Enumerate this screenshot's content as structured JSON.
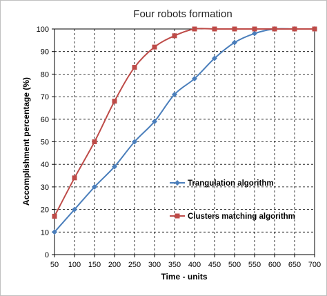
{
  "chart_data": {
    "type": "line",
    "title": "Four robots formation",
    "xlabel": "Time - units",
    "ylabel": "Accomplishment percentage (%)",
    "x": [
      50,
      100,
      150,
      200,
      250,
      300,
      350,
      400,
      450,
      500,
      550,
      600,
      650,
      700
    ],
    "xlim": [
      50,
      700
    ],
    "ylim": [
      0,
      100
    ],
    "xticks": [
      "50",
      "100",
      "150",
      "200",
      "250",
      "300",
      "350",
      "400",
      "450",
      "500",
      "550",
      "600",
      "650",
      "700"
    ],
    "yticks": [
      "0",
      "10",
      "20",
      "30",
      "40",
      "50",
      "60",
      "70",
      "80",
      "90",
      "100"
    ],
    "grid": "dashed",
    "legend_placement": "center-right",
    "series": [
      {
        "name": "Trangulation algorithm",
        "color": "#4a7ebb",
        "marker": "diamond",
        "values": [
          10,
          20,
          30,
          39,
          50,
          59,
          71,
          78,
          87,
          94,
          98,
          100,
          100,
          100
        ]
      },
      {
        "name": "Clusters matching algorithm",
        "color": "#be4b48",
        "marker": "square",
        "values": [
          17,
          34,
          50,
          68,
          83,
          92,
          97,
          100,
          100,
          100,
          100,
          100,
          100,
          100
        ]
      }
    ]
  }
}
